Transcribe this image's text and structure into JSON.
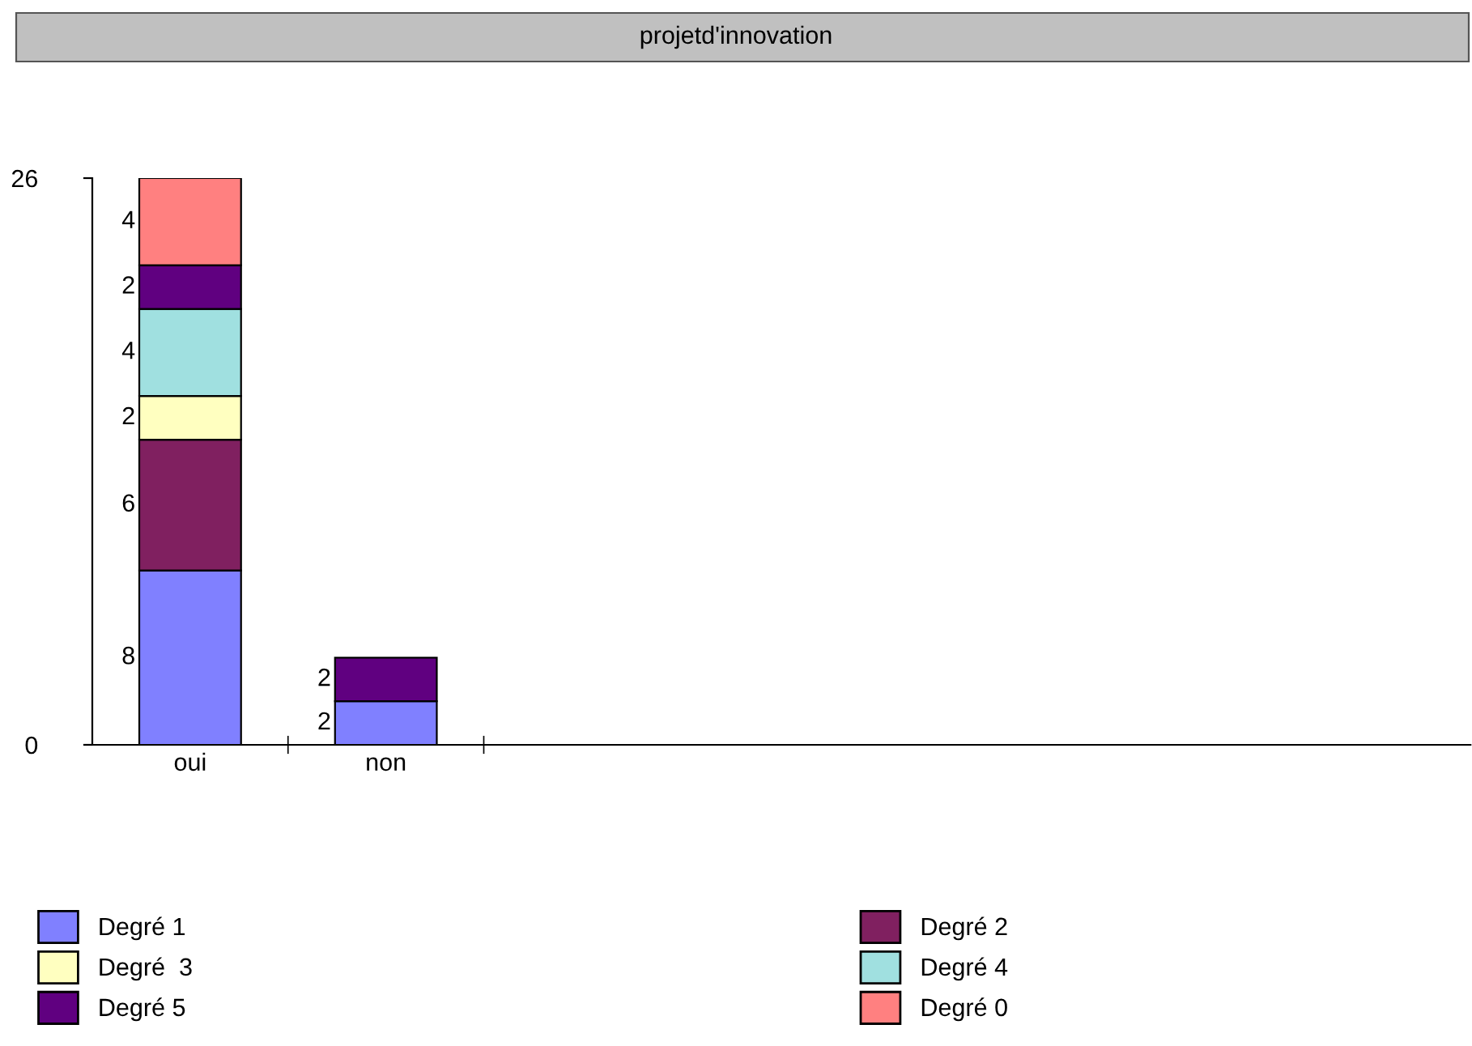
{
  "chart_data": {
    "type": "bar",
    "title": "projetd'innovation",
    "stacked": true,
    "categories": [
      "oui",
      "non"
    ],
    "series": [
      {
        "name": "Degré 1",
        "color": "#8080ff",
        "values": [
          8,
          2
        ]
      },
      {
        "name": "Degré 2",
        "color": "#802060",
        "values": [
          6,
          null
        ]
      },
      {
        "name": "Degré  3",
        "color": "#ffffc0",
        "values": [
          2,
          null
        ]
      },
      {
        "name": "Degré 4",
        "color": "#a0e0e0",
        "values": [
          4,
          null
        ]
      },
      {
        "name": "Degré 5",
        "color": "#600080",
        "values": [
          2,
          2
        ]
      },
      {
        "name": "Degré 0",
        "color": "#ff8080",
        "values": [
          4,
          null
        ]
      }
    ],
    "ylim": [
      0,
      26
    ],
    "yticks": [
      0,
      26
    ],
    "data_labels": true,
    "grid": false,
    "legend": "bottom"
  }
}
